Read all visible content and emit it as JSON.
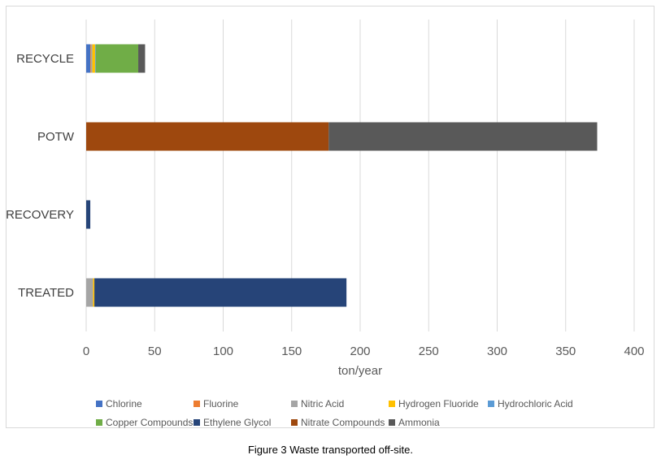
{
  "chart_data": {
    "type": "bar",
    "orientation": "horizontal",
    "stacked": true,
    "categories": [
      "TREATED",
      "RECOVERY",
      "POTW",
      "RECYCLE"
    ],
    "series": [
      {
        "name": "Chlorine",
        "color": "#4472c4",
        "values": [
          0,
          0,
          0,
          3
        ]
      },
      {
        "name": "Fluorine",
        "color": "#ed7d31",
        "values": [
          0,
          0,
          0,
          0.5
        ]
      },
      {
        "name": "Nitric Acid",
        "color": "#a5a5a5",
        "values": [
          5,
          0,
          0,
          1
        ]
      },
      {
        "name": "Hydrogen Fluoride",
        "color": "#ffc000",
        "values": [
          1,
          0,
          0,
          2
        ]
      },
      {
        "name": "Hydrochloric Acid",
        "color": "#5b9bd5",
        "values": [
          0,
          0,
          0,
          0.5
        ]
      },
      {
        "name": "Copper Compounds",
        "color": "#70ad47",
        "values": [
          0,
          0,
          0,
          31
        ]
      },
      {
        "name": "Ethylene Glycol",
        "color": "#264478",
        "values": [
          184,
          3,
          0,
          0
        ]
      },
      {
        "name": "Nitrate Compounds",
        "color": "#9e480e",
        "values": [
          0,
          0,
          177,
          0
        ]
      },
      {
        "name": "Ammonia",
        "color": "#595959",
        "values": [
          0,
          0,
          196,
          5
        ]
      }
    ],
    "xlabel": "ton/year",
    "xlim": [
      0,
      400
    ],
    "xticks": [
      0,
      50,
      100,
      150,
      200,
      250,
      300,
      350,
      400
    ],
    "grid": "vertical",
    "legend_position": "bottom"
  },
  "caption": "Figure 3 Waste transported off-site."
}
